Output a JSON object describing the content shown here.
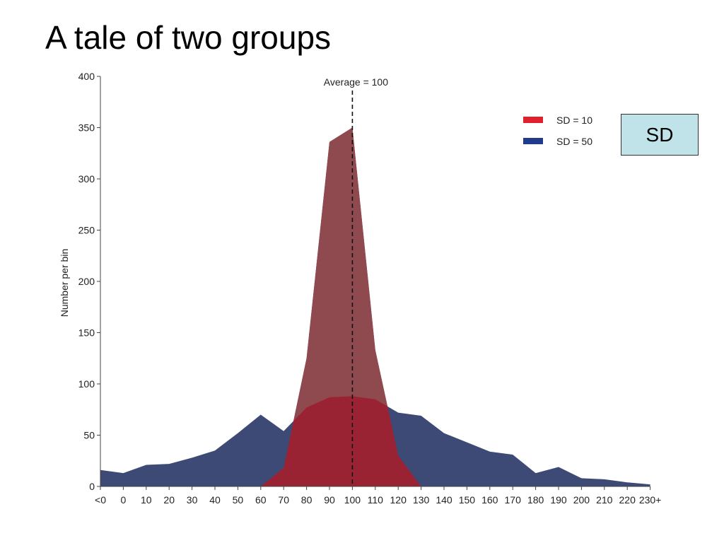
{
  "slide": {
    "title": "A tale of two groups",
    "sd_box_label": "SD"
  },
  "colors": {
    "sd10_fill": "#9a2333",
    "sd10_overlap_top": "#8f4a4f",
    "sd50_fill": "#3d4a75",
    "legend_sd10": "#e0202c",
    "legend_sd50": "#203a8c",
    "sd_box_bg": "#bfe3e8"
  },
  "chart_data": {
    "type": "area",
    "title": "",
    "xlabel": "",
    "ylabel": "Number per bin",
    "ylim": [
      0,
      400
    ],
    "yticks": [
      0,
      50,
      100,
      150,
      200,
      250,
      300,
      350,
      400
    ],
    "categories": [
      "<0",
      "0",
      "10",
      "20",
      "30",
      "40",
      "50",
      "60",
      "70",
      "80",
      "90",
      "100",
      "110",
      "120",
      "130",
      "140",
      "150",
      "160",
      "170",
      "180",
      "190",
      "200",
      "210",
      "220",
      "230+"
    ],
    "series": [
      {
        "name": "SD = 10",
        "values": [
          0,
          0,
          0,
          0,
          0,
          0,
          0,
          0,
          18,
          125,
          336,
          350,
          133,
          30,
          0,
          0,
          0,
          0,
          0,
          0,
          0,
          0,
          0,
          0,
          0
        ]
      },
      {
        "name": "SD = 50",
        "values": [
          16,
          13,
          21,
          22,
          28,
          35,
          52,
          70,
          54,
          77,
          87,
          88,
          85,
          72,
          69,
          52,
          43,
          34,
          31,
          13,
          19,
          8,
          7,
          4,
          2
        ]
      }
    ],
    "annotations": [
      {
        "text": "Average = 100",
        "x": "100"
      }
    ],
    "legend": {
      "placement": "top-right"
    },
    "grid": false
  }
}
